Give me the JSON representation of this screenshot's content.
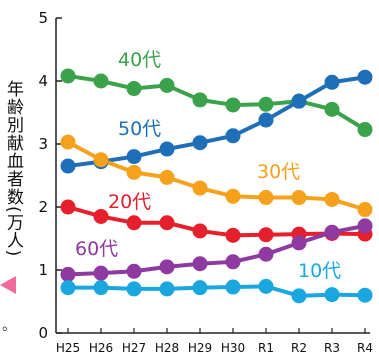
{
  "chart_data": {
    "type": "line",
    "ylabel": "年齢別献血者数(万人)",
    "ylim": [
      0,
      5
    ],
    "yticks": [
      "0",
      "1",
      "2",
      "3",
      "4",
      "5"
    ],
    "categories": [
      "H25",
      "H26",
      "H27",
      "H28",
      "H29",
      "H30",
      "R1",
      "R2",
      "R3",
      "R4"
    ],
    "grid": false,
    "series": [
      {
        "name": "40代",
        "color": "#3aa24a",
        "values": [
          4.08,
          4.0,
          3.88,
          3.93,
          3.7,
          3.62,
          3.63,
          3.68,
          3.55,
          3.23
        ]
      },
      {
        "name": "50代",
        "color": "#1f6fb8",
        "values": [
          2.65,
          2.72,
          2.8,
          2.92,
          3.02,
          3.13,
          3.38,
          3.68,
          3.98,
          4.06
        ]
      },
      {
        "name": "30代",
        "color": "#f6a11c",
        "values": [
          3.03,
          2.75,
          2.55,
          2.47,
          2.3,
          2.17,
          2.15,
          2.15,
          2.12,
          1.96
        ]
      },
      {
        "name": "20代",
        "color": "#e5202c",
        "values": [
          2.0,
          1.85,
          1.75,
          1.75,
          1.62,
          1.55,
          1.56,
          1.57,
          1.58,
          1.57
        ]
      },
      {
        "name": "60代",
        "color": "#8e3aa0",
        "values": [
          0.93,
          0.95,
          0.98,
          1.05,
          1.1,
          1.13,
          1.25,
          1.43,
          1.6,
          1.7
        ]
      },
      {
        "name": "10代",
        "color": "#1aa7e0",
        "values": [
          0.72,
          0.72,
          0.7,
          0.7,
          0.72,
          0.73,
          0.74,
          0.59,
          0.61,
          0.6
        ]
      }
    ]
  }
}
